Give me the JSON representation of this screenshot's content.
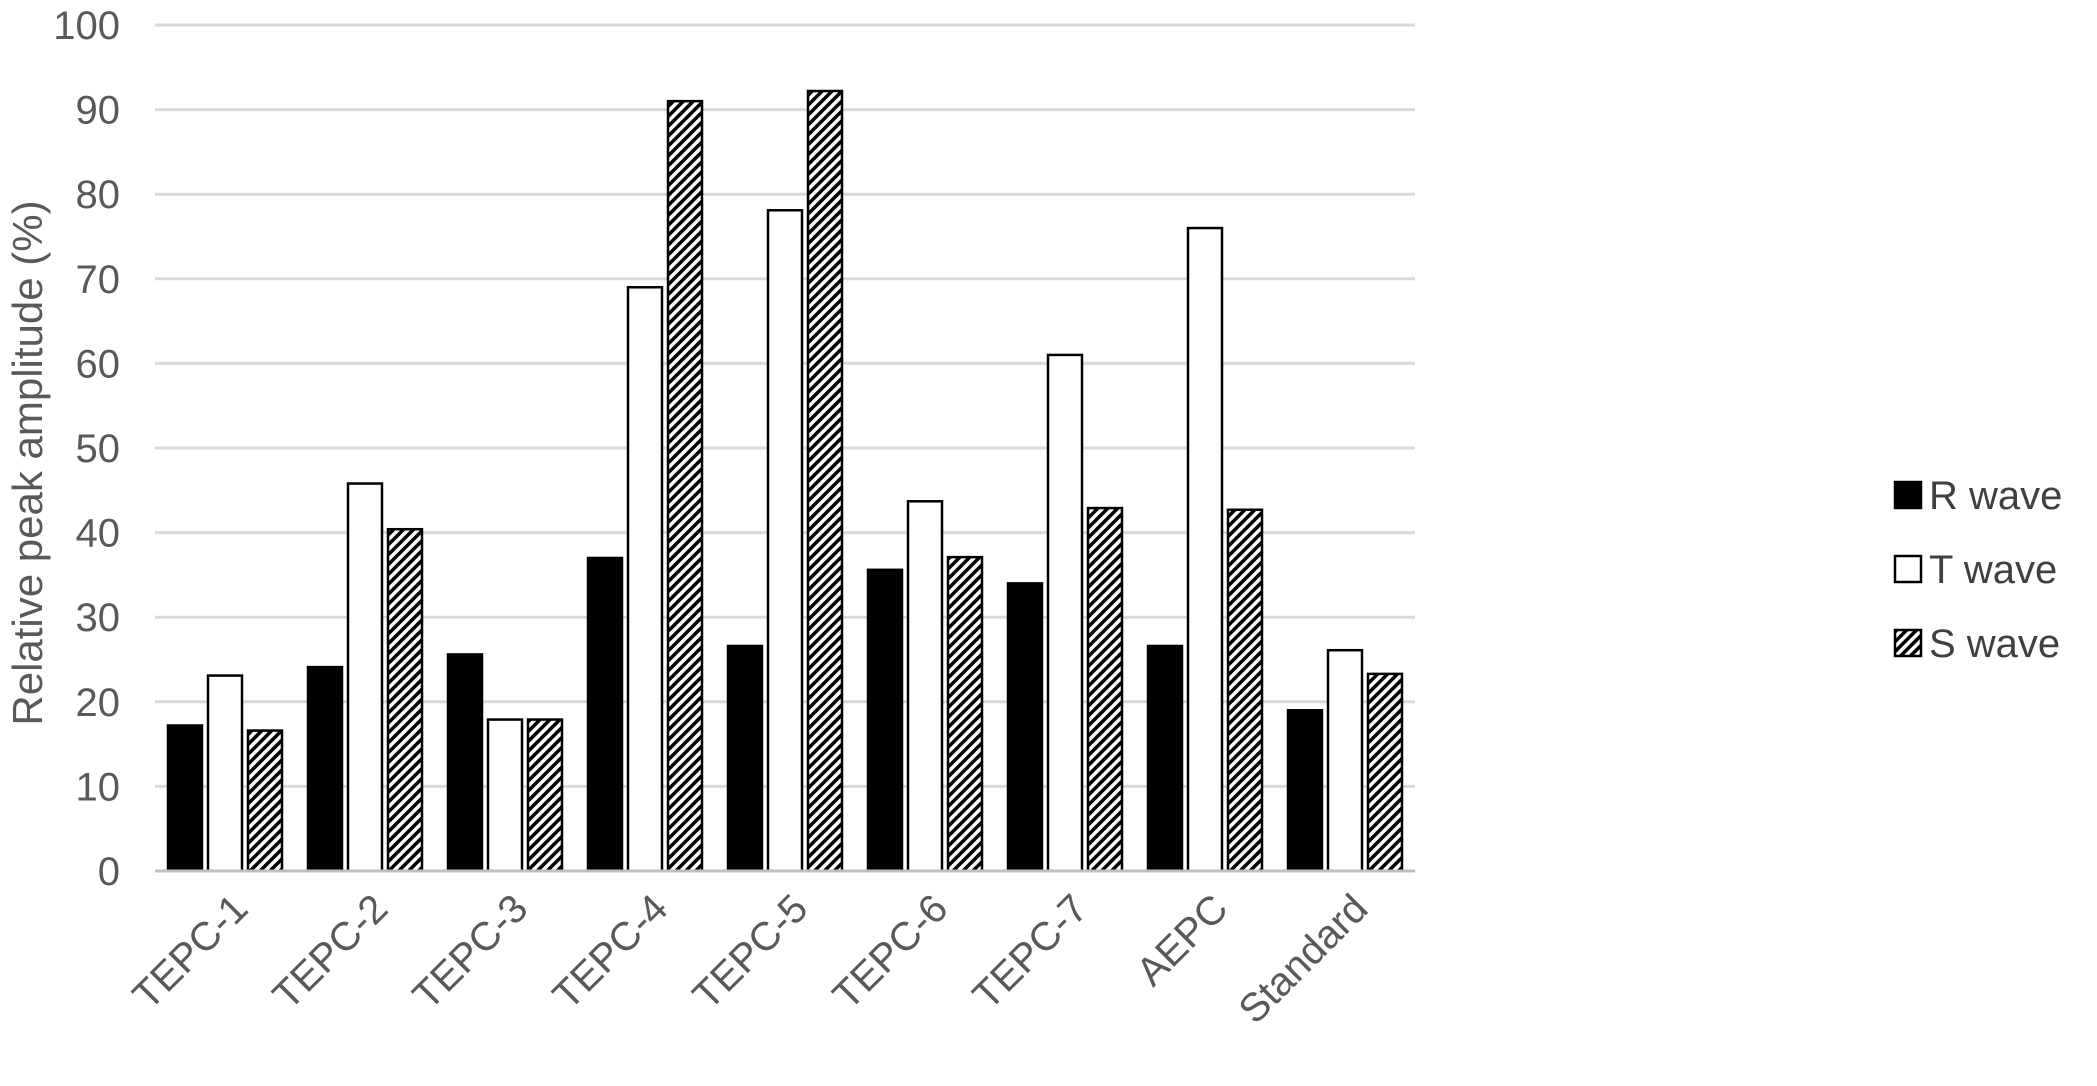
{
  "chart_data": {
    "type": "bar",
    "title": "",
    "xlabel": "",
    "ylabel": "Relative peak amplitude (%)",
    "ylim": [
      0,
      100
    ],
    "yticks": [
      "0",
      "10",
      "20",
      "30",
      "40",
      "50",
      "60",
      "70",
      "80",
      "90",
      "100"
    ],
    "grid": true,
    "legend_position": "right",
    "categories": [
      "TEPC-1",
      "TEPC-2",
      "TEPC-3",
      "TEPC-4",
      "TEPC-5",
      "TEPC-6",
      "TEPC-7",
      "AEPC",
      "Standard"
    ],
    "series": [
      {
        "name": "R wave",
        "fill": "solid",
        "color": "#000000",
        "values": [
          17.2,
          24.1,
          25.6,
          37.0,
          26.6,
          35.6,
          34.0,
          26.6,
          19.0
        ]
      },
      {
        "name": "T wave",
        "fill": "white",
        "color": "#ffffff",
        "values": [
          23.1,
          45.8,
          17.9,
          69.0,
          78.1,
          43.7,
          61.0,
          76.0,
          26.1
        ]
      },
      {
        "name": "S wave",
        "fill": "hatched",
        "color": "#000000",
        "values": [
          16.6,
          40.4,
          17.9,
          91.0,
          92.2,
          37.1,
          42.9,
          42.7,
          23.3
        ]
      }
    ]
  }
}
